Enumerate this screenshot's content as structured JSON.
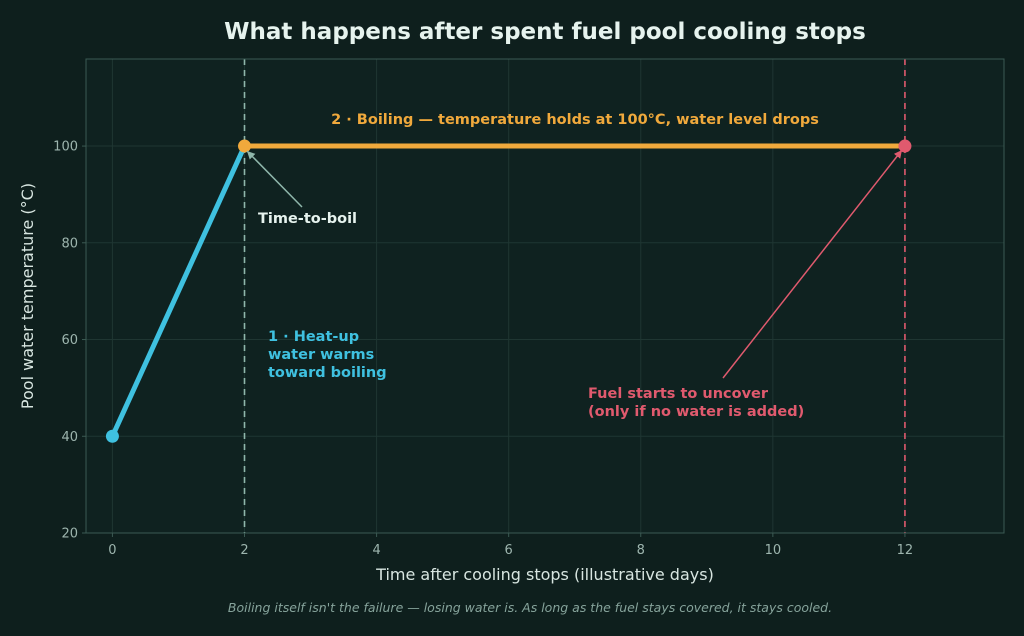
{
  "colors": {
    "background": "#0e1f1d",
    "plot_bg": "#0f2220",
    "grid": "#1f3632",
    "frame": "#3b5a53",
    "heatup": "#3fc1e0",
    "boiling": "#f0a93c",
    "uncover": "#e05a6e",
    "boil_marker_line": "#8fb7ab",
    "arrow_boil": "#8fb7ab",
    "text": "#e6f3ee",
    "muted": "#9db5ae"
  },
  "chart_data": {
    "type": "line",
    "title": "What happens after spent fuel pool cooling stops",
    "xlabel": "Time after cooling stops  (illustrative days)",
    "ylabel": "Pool water temperature  (°C)",
    "xlim": [
      -0.4,
      13.5
    ],
    "ylim": [
      20,
      118
    ],
    "xticks": [
      0,
      2,
      4,
      6,
      8,
      10,
      12
    ],
    "yticks": [
      20,
      40,
      60,
      80,
      100
    ],
    "grid": true,
    "series": [
      {
        "color": "#3fc1e0",
        "x": [
          0,
          2
        ],
        "y": [
          40,
          100
        ]
      },
      {
        "color": "#f0a93c",
        "x": [
          2,
          12
        ],
        "y": [
          100,
          100
        ]
      }
    ],
    "points": [
      {
        "x": 0,
        "y": 40,
        "color": "#3fc1e0"
      },
      {
        "x": 2,
        "y": 100,
        "color": "#f0a93c"
      },
      {
        "x": 12,
        "y": 100,
        "color": "#e05a6e"
      }
    ],
    "vlines": [
      {
        "x": 2,
        "color": "#8fb7ab"
      },
      {
        "x": 12,
        "color": "#e05a6e"
      }
    ],
    "annotations": {
      "boiling": {
        "lines": [
          "2 · Boiling  —  temperature holds at 100°C, water level drops"
        ],
        "color": "#f0a93c"
      },
      "heatup": {
        "lines": [
          "1 · Heat-up",
          "water warms",
          "toward boiling"
        ],
        "color": "#3fc1e0"
      },
      "time_to_boil": {
        "lines": [
          "Time-to-boil"
        ],
        "color": "#e6f3ee"
      },
      "uncover": {
        "lines": [
          "Fuel starts to uncover",
          "(only if no water is added)"
        ],
        "color": "#e05a6e"
      }
    }
  },
  "footnote": "Boiling itself isn't the failure — losing water is. As long as the fuel stays covered, it stays cooled."
}
